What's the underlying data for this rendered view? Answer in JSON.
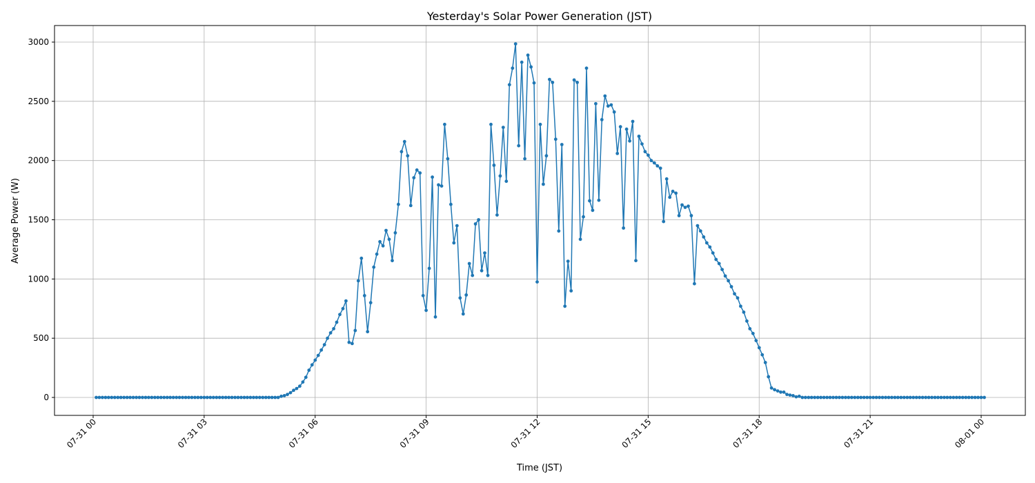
{
  "chart_data": {
    "type": "line",
    "title": "Yesterday's Solar Power Generation (JST)",
    "xlabel": "Time (JST)",
    "ylabel": "Average Power (W)",
    "x_tick_labels": [
      "07-31 00",
      "07-31 03",
      "07-31 06",
      "07-31 09",
      "07-31 12",
      "07-31 15",
      "07-31 18",
      "07-31 21",
      "08-01 00"
    ],
    "y_ticks": [
      0,
      500,
      1000,
      1500,
      2000,
      2500,
      3000
    ],
    "xlim": [
      "07-31 00:00",
      "08-01 00:00"
    ],
    "ylim": [
      0,
      3000
    ],
    "grid": true,
    "color": "#1f77b4",
    "series": [
      {
        "x_start": "07-31 00:05",
        "interval_minutes": 5,
        "values": [
          0,
          0,
          0,
          0,
          0,
          0,
          0,
          0,
          0,
          0,
          0,
          0,
          0,
          0,
          0,
          0,
          0,
          0,
          0,
          0,
          0,
          0,
          0,
          0,
          0,
          0,
          0,
          0,
          0,
          0,
          0,
          0,
          0,
          0,
          0,
          0,
          0,
          0,
          0,
          0,
          0,
          0,
          0,
          0,
          0,
          0,
          0,
          0,
          0,
          0,
          0,
          0,
          0,
          0,
          0,
          0,
          0,
          0,
          0,
          0,
          10,
          15,
          25,
          40,
          60,
          75,
          95,
          130,
          170,
          230,
          275,
          315,
          355,
          400,
          445,
          500,
          545,
          580,
          635,
          700,
          750,
          815,
          465,
          455,
          565,
          985,
          1175,
          860,
          555,
          800,
          1100,
          1210,
          1315,
          1280,
          1410,
          1335,
          1155,
          1390,
          1630,
          2075,
          2160,
          2040,
          1620,
          1855,
          1920,
          1895,
          860,
          735,
          1090,
          1860,
          680,
          1795,
          1785,
          2305,
          2015,
          1630,
          1305,
          1450,
          840,
          705,
          865,
          1130,
          1030,
          1465,
          1500,
          1070,
          1220,
          1030,
          2305,
          1960,
          1540,
          1870,
          2280,
          1825,
          2640,
          2780,
          2985,
          2125,
          2830,
          2015,
          2890,
          2790,
          2655,
          975,
          2305,
          1800,
          2040,
          2685,
          2660,
          2180,
          1405,
          2135,
          770,
          1150,
          900,
          2680,
          2660,
          1335,
          1525,
          2780,
          1660,
          1580,
          2480,
          1665,
          2345,
          2545,
          2460,
          2470,
          2410,
          2060,
          2285,
          1430,
          2265,
          2165,
          2330,
          1155,
          2205,
          2140,
          2075,
          2045,
          2000,
          1980,
          1955,
          1935,
          1485,
          1845,
          1690,
          1740,
          1725,
          1535,
          1625,
          1605,
          1615,
          1535,
          960,
          1450,
          1405,
          1355,
          1305,
          1270,
          1220,
          1165,
          1130,
          1080,
          1025,
          985,
          935,
          875,
          840,
          770,
          720,
          645,
          580,
          540,
          480,
          420,
          360,
          295,
          175,
          80,
          65,
          55,
          45,
          45,
          25,
          20,
          15,
          5,
          10,
          0,
          0,
          0,
          0,
          0,
          0,
          0,
          0,
          0,
          0,
          0,
          0,
          0,
          0,
          0,
          0,
          0,
          0,
          0,
          0,
          0,
          0,
          0,
          0,
          0,
          0,
          0,
          0,
          0,
          0,
          0,
          0,
          0,
          0,
          0,
          0,
          0,
          0,
          0,
          0,
          0,
          0,
          0,
          0,
          0,
          0,
          0,
          0,
          0,
          0,
          0,
          0,
          0,
          0,
          0,
          0,
          0,
          0,
          0,
          0
        ]
      }
    ]
  }
}
